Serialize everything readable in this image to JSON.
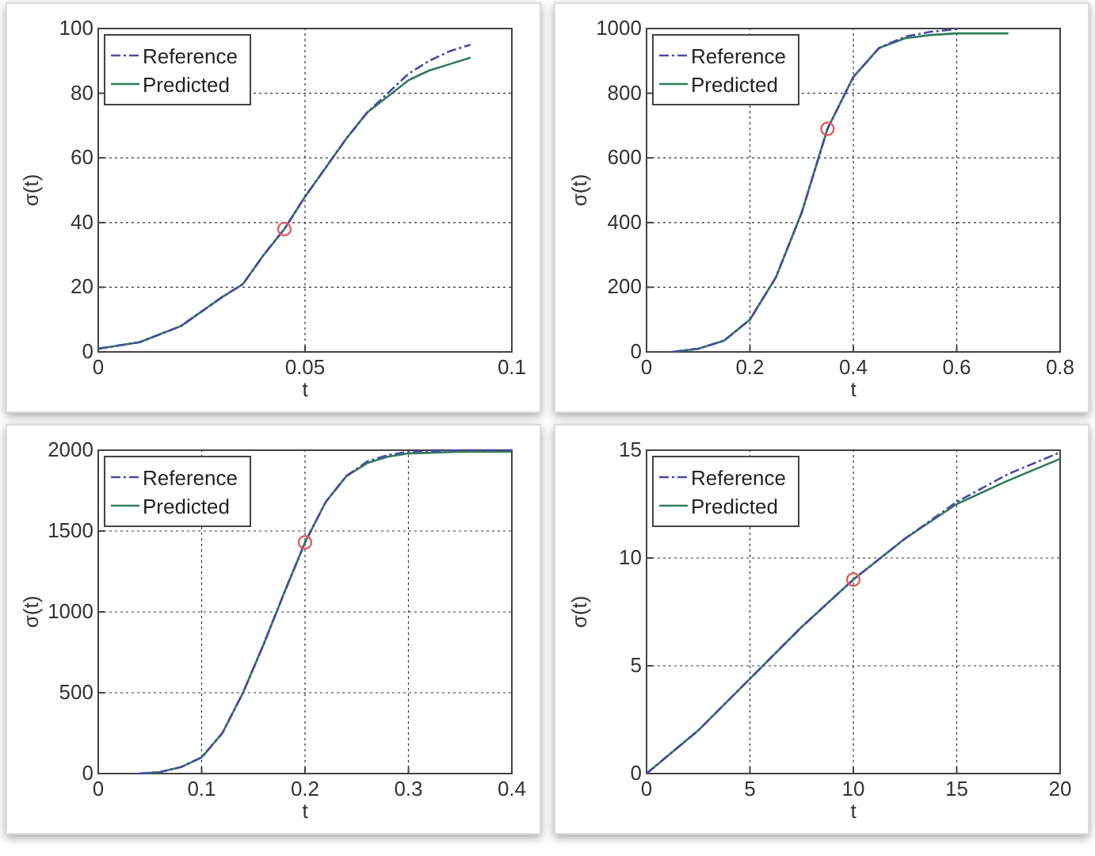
{
  "chart_data": [
    {
      "type": "line",
      "xlabel": "t",
      "ylabel": "σ(t)",
      "xlim": [
        0,
        0.1
      ],
      "xticks": [
        0,
        0.05,
        0.1
      ],
      "ylim": [
        0,
        100
      ],
      "yticks": [
        0,
        20,
        40,
        60,
        80,
        100
      ],
      "grid": true,
      "legend": "top left",
      "series": [
        {
          "name": "Reference",
          "color": "#4a4aa8",
          "line_style": "dashdot",
          "x": [
            0,
            0.01,
            0.02,
            0.03,
            0.035,
            0.04,
            0.045,
            0.05,
            0.055,
            0.06,
            0.065,
            0.07,
            0.075,
            0.08,
            0.085,
            0.09
          ],
          "values": [
            1,
            3,
            8,
            17,
            21,
            30,
            38,
            48,
            57,
            66,
            74,
            80,
            86,
            90,
            93,
            95
          ]
        },
        {
          "name": "Predicted",
          "color": "#2e7d5b",
          "line_style": "solid",
          "x": [
            0,
            0.01,
            0.02,
            0.03,
            0.035,
            0.04,
            0.045,
            0.05,
            0.055,
            0.06,
            0.065,
            0.07,
            0.075,
            0.08,
            0.085,
            0.09
          ],
          "values": [
            1,
            3,
            8,
            17,
            21,
            30,
            38,
            48,
            57,
            66,
            74,
            79,
            84,
            87,
            89,
            91
          ]
        },
        {
          "type": "scatter",
          "color": "#e06060",
          "marker": "circle",
          "x": [
            0.045
          ],
          "values": [
            38
          ]
        }
      ]
    },
    {
      "type": "line",
      "xlabel": "t",
      "ylabel": "σ(t)",
      "xlim": [
        0,
        0.8
      ],
      "xticks": [
        0,
        0.2,
        0.4,
        0.6,
        0.8
      ],
      "ylim": [
        0,
        1000
      ],
      "yticks": [
        0,
        200,
        400,
        600,
        800,
        1000
      ],
      "grid": true,
      "legend": "top left",
      "series": [
        {
          "name": "Reference",
          "color": "#4a4aa8",
          "line_style": "dashdot",
          "x": [
            0.05,
            0.1,
            0.15,
            0.2,
            0.25,
            0.3,
            0.35,
            0.4,
            0.45,
            0.5,
            0.55,
            0.6
          ],
          "values": [
            0,
            10,
            35,
            100,
            230,
            430,
            690,
            850,
            940,
            975,
            990,
            998
          ]
        },
        {
          "name": "Predicted",
          "color": "#2e7d5b",
          "line_style": "solid",
          "x": [
            0.05,
            0.1,
            0.15,
            0.2,
            0.25,
            0.3,
            0.35,
            0.4,
            0.45,
            0.5,
            0.55,
            0.6,
            0.7
          ],
          "values": [
            0,
            10,
            35,
            100,
            230,
            430,
            690,
            850,
            940,
            970,
            980,
            985,
            985
          ]
        },
        {
          "type": "scatter",
          "color": "#e06060",
          "marker": "circle",
          "x": [
            0.35
          ],
          "values": [
            690
          ]
        }
      ]
    },
    {
      "type": "line",
      "xlabel": "t",
      "ylabel": "σ(t)",
      "xlim": [
        0,
        0.4
      ],
      "xticks": [
        0,
        0.1,
        0.2,
        0.3,
        0.4
      ],
      "ylim": [
        0,
        2000
      ],
      "yticks": [
        0,
        500,
        1000,
        1500,
        2000
      ],
      "grid": true,
      "legend": "top left",
      "series": [
        {
          "name": "Reference",
          "color": "#4a4aa8",
          "line_style": "dashdot",
          "x": [
            0.04,
            0.06,
            0.08,
            0.1,
            0.12,
            0.14,
            0.16,
            0.18,
            0.2,
            0.22,
            0.24,
            0.26,
            0.28,
            0.3,
            0.35,
            0.4
          ],
          "values": [
            0,
            10,
            40,
            100,
            250,
            500,
            800,
            1120,
            1430,
            1680,
            1840,
            1930,
            1970,
            1990,
            2000,
            2000
          ]
        },
        {
          "name": "Predicted",
          "color": "#2e7d5b",
          "line_style": "solid",
          "x": [
            0.04,
            0.06,
            0.08,
            0.1,
            0.12,
            0.14,
            0.16,
            0.18,
            0.2,
            0.22,
            0.24,
            0.26,
            0.28,
            0.3,
            0.35,
            0.4
          ],
          "values": [
            0,
            10,
            40,
            100,
            250,
            500,
            800,
            1120,
            1430,
            1680,
            1840,
            1920,
            1960,
            1980,
            1990,
            1990
          ]
        },
        {
          "type": "scatter",
          "color": "#e06060",
          "marker": "circle",
          "x": [
            0.2
          ],
          "values": [
            1430
          ]
        }
      ]
    },
    {
      "type": "line",
      "xlabel": "t",
      "ylabel": "σ(t)",
      "xlim": [
        0,
        20
      ],
      "xticks": [
        0,
        5,
        10,
        15,
        20
      ],
      "ylim": [
        0,
        15
      ],
      "yticks": [
        0,
        5,
        10,
        15
      ],
      "grid": true,
      "legend": "top left",
      "series": [
        {
          "name": "Reference",
          "color": "#4a4aa8",
          "line_style": "dashdot",
          "x": [
            0,
            2.5,
            5,
            7.5,
            10,
            12.5,
            15,
            17.5,
            20
          ],
          "values": [
            0,
            2,
            4.4,
            6.8,
            9,
            10.9,
            12.6,
            13.9,
            14.9
          ]
        },
        {
          "name": "Predicted",
          "color": "#2e7d5b",
          "line_style": "solid",
          "x": [
            0,
            2.5,
            5,
            7.5,
            10,
            12.5,
            15,
            17.5,
            20
          ],
          "values": [
            0,
            2,
            4.4,
            6.8,
            9,
            10.9,
            12.5,
            13.6,
            14.6
          ]
        },
        {
          "type": "scatter",
          "color": "#e06060",
          "marker": "circle",
          "x": [
            10
          ],
          "values": [
            9
          ]
        }
      ]
    }
  ]
}
